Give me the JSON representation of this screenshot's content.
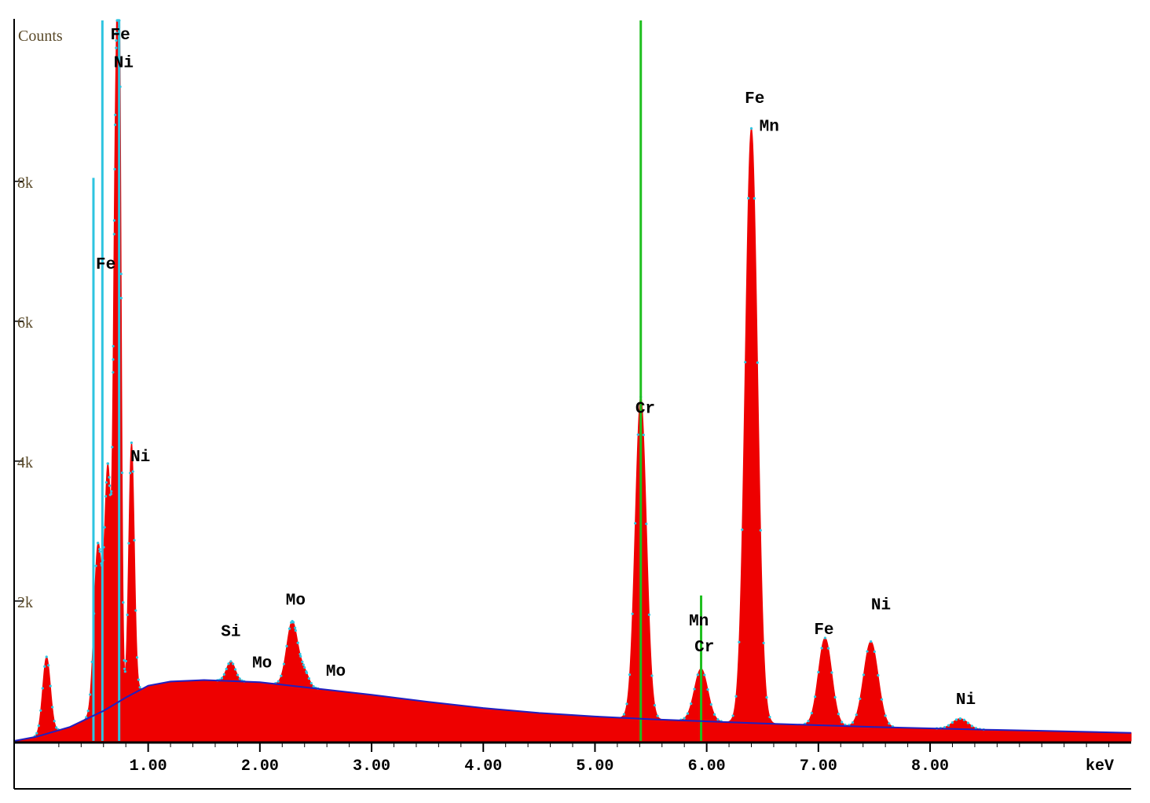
{
  "chart_data": {
    "type": "area",
    "ylabel": "Counts",
    "xlabel": "keV",
    "xlim": [
      -0.2,
      9.8
    ],
    "ylim": [
      0,
      10300
    ],
    "y_ticks": [
      {
        "value": 2000,
        "label": "2k"
      },
      {
        "value": 4000,
        "label": "4k"
      },
      {
        "value": 6000,
        "label": "6k"
      },
      {
        "value": 8000,
        "label": "8k"
      }
    ],
    "x_ticks": [
      {
        "value": 1.0,
        "label": "1.00"
      },
      {
        "value": 2.0,
        "label": "2.00"
      },
      {
        "value": 3.0,
        "label": "3.00"
      },
      {
        "value": 4.0,
        "label": "4.00"
      },
      {
        "value": 5.0,
        "label": "5.00"
      },
      {
        "value": 6.0,
        "label": "6.00"
      },
      {
        "value": 7.0,
        "label": "7.00"
      },
      {
        "value": 8.0,
        "label": "8.00"
      }
    ],
    "background": [
      [
        -0.2,
        0
      ],
      [
        0,
        60
      ],
      [
        0.3,
        200
      ],
      [
        0.6,
        430
      ],
      [
        0.8,
        620
      ],
      [
        1.0,
        790
      ],
      [
        1.2,
        850
      ],
      [
        1.5,
        870
      ],
      [
        2.0,
        840
      ],
      [
        2.5,
        750
      ],
      [
        3.0,
        660
      ],
      [
        3.5,
        560
      ],
      [
        4.0,
        470
      ],
      [
        4.5,
        400
      ],
      [
        5.0,
        350
      ],
      [
        5.5,
        310
      ],
      [
        6.0,
        280
      ],
      [
        6.5,
        250
      ],
      [
        7.0,
        225
      ],
      [
        7.5,
        200
      ],
      [
        8.0,
        180
      ],
      [
        8.5,
        160
      ],
      [
        9.0,
        145
      ],
      [
        9.8,
        115
      ]
    ],
    "peaks": [
      {
        "x": 0.09,
        "height": 1100,
        "width": 0.035
      },
      {
        "x": 0.55,
        "height": 2400,
        "width": 0.035
      },
      {
        "x": 0.64,
        "height": 3400,
        "width": 0.03
      },
      {
        "x": 0.705,
        "height": 6600,
        "width": 0.018
      },
      {
        "x": 0.74,
        "height": 9900,
        "width": 0.018
      },
      {
        "x": 0.851,
        "height": 3600,
        "width": 0.025
      },
      {
        "x": 1.74,
        "height": 280,
        "width": 0.04
      },
      {
        "x": 2.29,
        "height": 920,
        "width": 0.05
      },
      {
        "x": 2.4,
        "height": 200,
        "width": 0.04
      },
      {
        "x": 5.41,
        "height": 4600,
        "width": 0.05
      },
      {
        "x": 5.95,
        "height": 750,
        "width": 0.06
      },
      {
        "x": 6.4,
        "height": 8500,
        "width": 0.055
      },
      {
        "x": 7.06,
        "height": 1250,
        "width": 0.06
      },
      {
        "x": 7.47,
        "height": 1220,
        "width": 0.065
      },
      {
        "x": 8.27,
        "height": 150,
        "width": 0.07
      }
    ],
    "marker_lines": [
      {
        "x": 0.51,
        "top": 8050,
        "color": "#2ec4e0"
      },
      {
        "x": 0.59,
        "top": 10300,
        "color": "#2ec4e0"
      },
      {
        "x": 0.74,
        "top": 10300,
        "color": "#2ec4e0"
      },
      {
        "x": 5.41,
        "top": 10300,
        "color": "#1fbf1f"
      },
      {
        "x": 5.95,
        "top": 2080,
        "color": "#1fbf1f"
      }
    ],
    "annotations": [
      {
        "text": "Fe",
        "x": 0.75,
        "y": 10030
      },
      {
        "text": "Ni",
        "x": 0.78,
        "y": 9630
      },
      {
        "text": "Fe",
        "x": 0.62,
        "y": 6750
      },
      {
        "text": "Ni",
        "x": 0.93,
        "y": 4000
      },
      {
        "text": "Si",
        "x": 1.74,
        "y": 1500
      },
      {
        "text": "Mo",
        "x": 2.32,
        "y": 1950
      },
      {
        "text": "Mo",
        "x": 2.02,
        "y": 1050
      },
      {
        "text": "Mo",
        "x": 2.68,
        "y": 930
      },
      {
        "text": "Cr",
        "x": 5.45,
        "y": 4690
      },
      {
        "text": "Mn",
        "x": 5.93,
        "y": 1650
      },
      {
        "text": "Cr",
        "x": 5.98,
        "y": 1280
      },
      {
        "text": "Fe",
        "x": 6.43,
        "y": 9120
      },
      {
        "text": "Mn",
        "x": 6.56,
        "y": 8720
      },
      {
        "text": "Fe",
        "x": 7.05,
        "y": 1530
      },
      {
        "text": "Ni",
        "x": 7.56,
        "y": 1880
      },
      {
        "text": "Ni",
        "x": 8.32,
        "y": 530
      }
    ],
    "colors": {
      "fill": "#ee0000",
      "background_line": "#2020c0",
      "fit_points": "#2ec4e0",
      "axis": "#000000"
    },
    "grid": false
  }
}
